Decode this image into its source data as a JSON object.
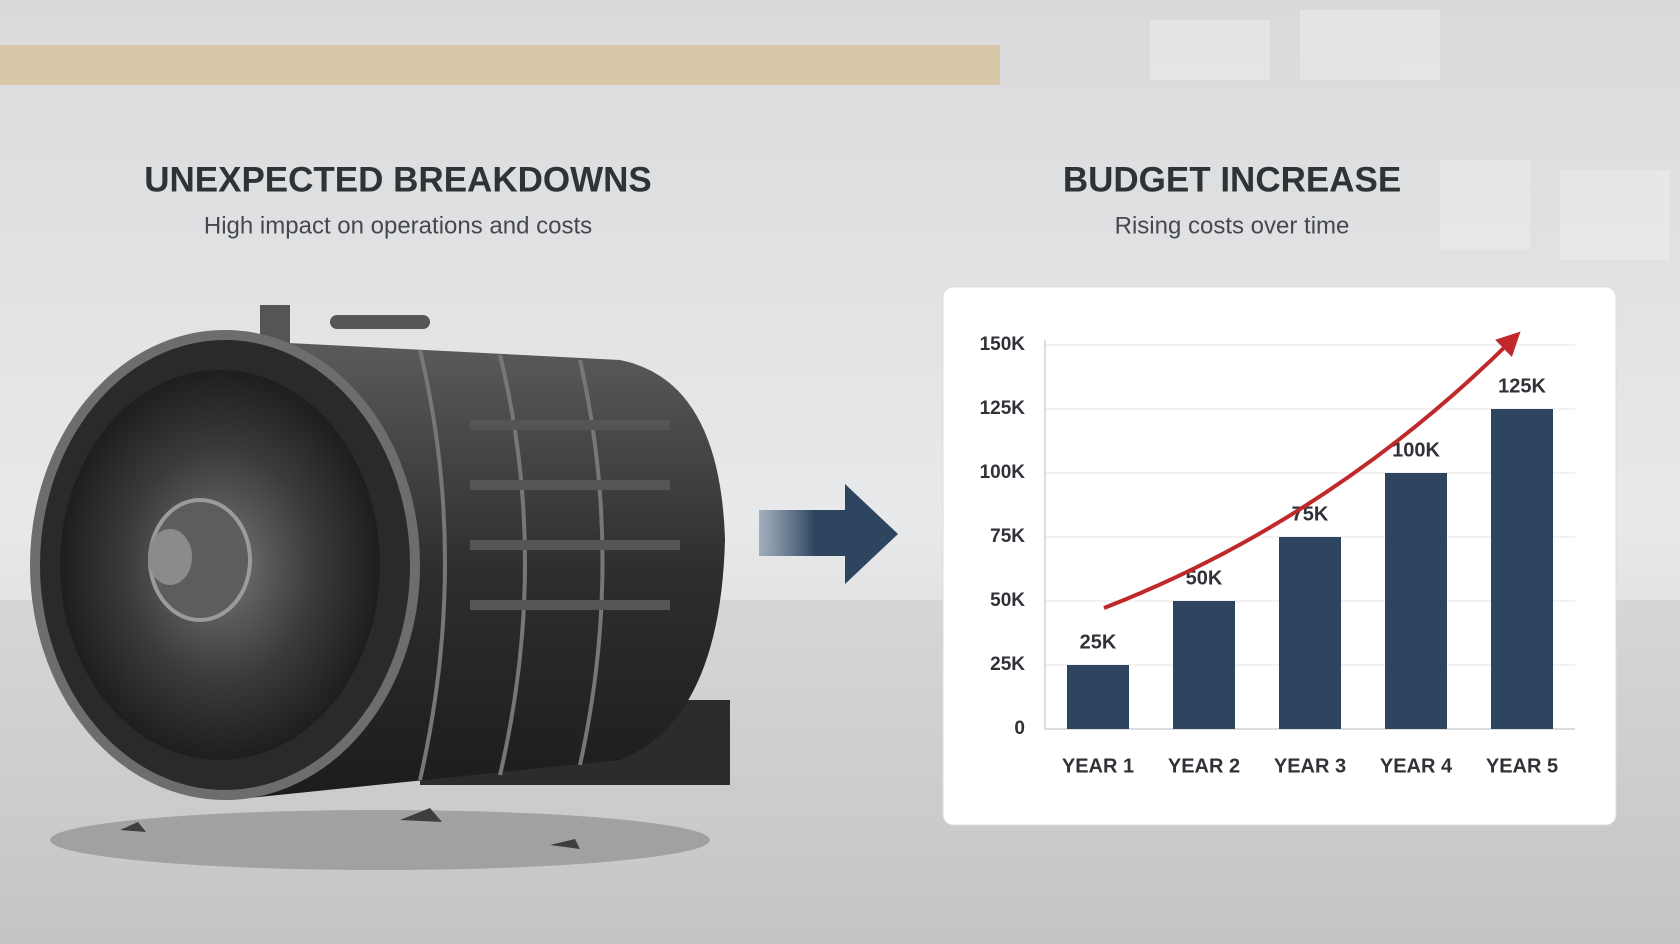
{
  "left": {
    "title": "UNEXPECTED BREAKDOWNS",
    "subtitle": "High impact on operations and costs"
  },
  "chart_data": {
    "type": "bar",
    "title": "BUDGET INCREASE",
    "subtitle": "Rising costs over time",
    "categories": [
      "YEAR 1",
      "YEAR 2",
      "YEAR 3",
      "YEAR 4",
      "YEAR 5"
    ],
    "values": [
      25000,
      50000,
      75000,
      100000,
      125000
    ],
    "value_labels": [
      "25K",
      "50K",
      "75K",
      "100K",
      "125K"
    ],
    "color": "#2e4560",
    "ylim": [
      0,
      150000
    ],
    "yticks": [
      0,
      {
        "value": 25000,
        "label": "25K"
      },
      {
        "value": 50000,
        "label": "50K"
      },
      {
        "value": 75000,
        "label": "75K"
      },
      {
        "value": 100000,
        "label": "100K"
      },
      {
        "value": 125000,
        "label": "125K"
      },
      {
        "value": 150000,
        "label": "150K"
      }
    ],
    "grid": true
  }
}
